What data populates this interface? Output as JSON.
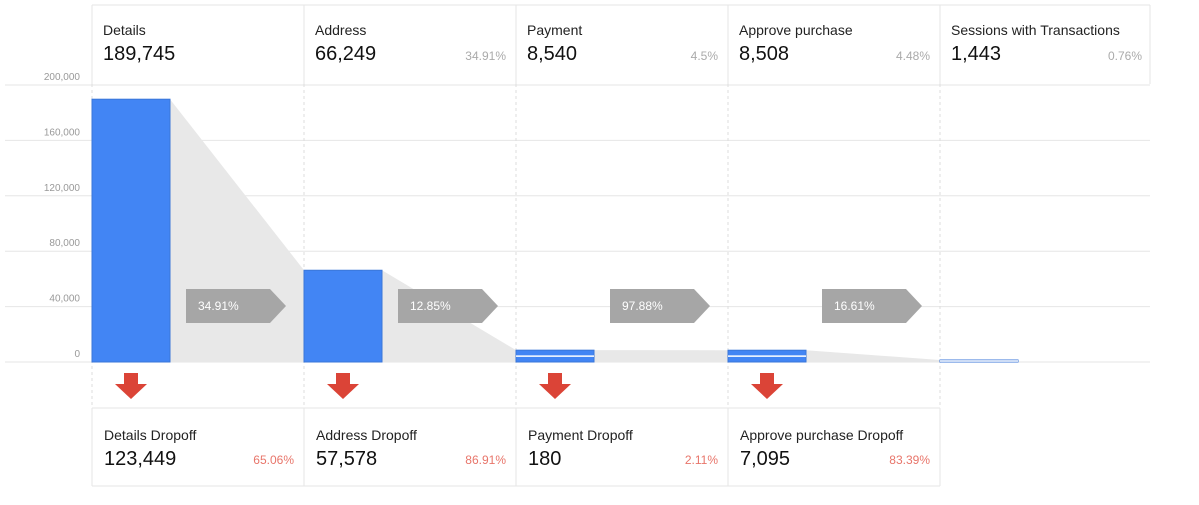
{
  "chart_data": {
    "type": "bar",
    "ylim": [
      0,
      200000
    ],
    "y_ticks": [
      "200,000",
      "160,000",
      "120,000",
      "80,000",
      "40,000",
      "0"
    ],
    "y_tick_values": [
      200000,
      160000,
      120000,
      80000,
      40000,
      0
    ],
    "grid": true,
    "steps": [
      {
        "name": "Details",
        "value": 189745,
        "value_label": "189,745",
        "pct": ""
      },
      {
        "name": "Address",
        "value": 66249,
        "value_label": "66,249",
        "pct": "34.91%"
      },
      {
        "name": "Payment",
        "value": 8540,
        "value_label": "8,540",
        "pct": "4.5%"
      },
      {
        "name": "Approve purchase",
        "value": 8508,
        "value_label": "8,508",
        "pct": "4.48%"
      },
      {
        "name": "Sessions with Transactions",
        "value": 1443,
        "value_label": "1,443",
        "pct": "0.76%"
      }
    ],
    "conversions": [
      "34.91%",
      "12.85%",
      "97.88%",
      "16.61%"
    ],
    "dropoffs": [
      {
        "name": "Details Dropoff",
        "value": 123449,
        "value_label": "123,449",
        "pct": "65.06%"
      },
      {
        "name": "Address Dropoff",
        "value": 57578,
        "value_label": "57,578",
        "pct": "86.91%"
      },
      {
        "name": "Payment Dropoff",
        "value": 180,
        "value_label": "180",
        "pct": "2.11%"
      },
      {
        "name": "Approve purchase Dropoff",
        "value": 7095,
        "value_label": "7,095",
        "pct": "83.39%"
      }
    ],
    "colors": {
      "bar": "#4285f4",
      "bar_stroke": "#3a76d8",
      "funnel_fill": "#e8e8e8",
      "conversion_arrow": "#a6a6a6",
      "dropoff_arrow": "#db4437",
      "dropoff_pct": "#e8756a",
      "grid": "#e6e6e6"
    }
  }
}
